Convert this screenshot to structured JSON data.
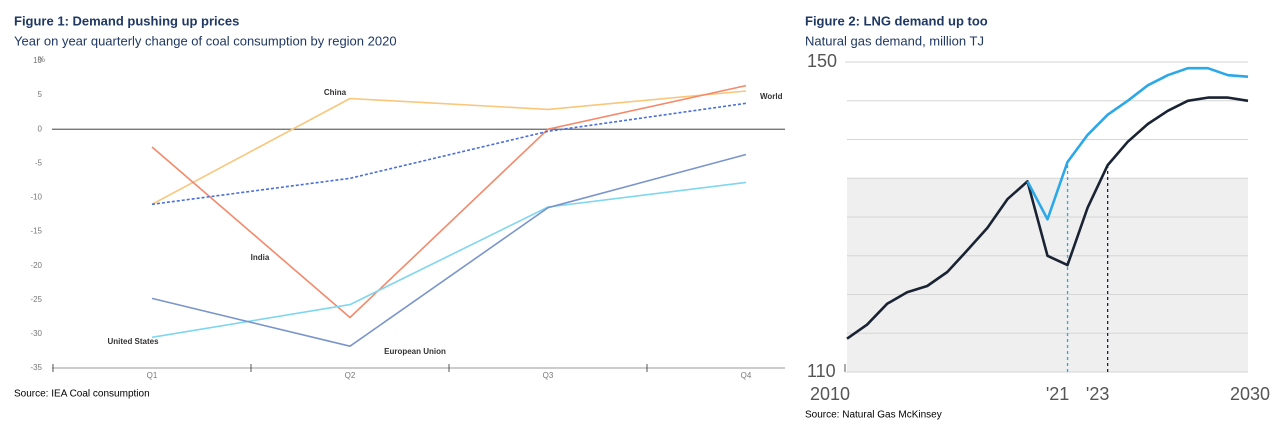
{
  "chart_data": [
    {
      "type": "line",
      "title": "Figure 1: Demand pushing up prices",
      "subtitle": "Year on year quarterly change of coal consumption by region 2020",
      "y_label": "%",
      "source": "Source: IEA Coal consumption",
      "categories": [
        "Q1",
        "Q2",
        "Q3",
        "Q4"
      ],
      "ylim": [
        -35,
        10
      ],
      "yticks": [
        10,
        5,
        0,
        -5,
        -10,
        -15,
        -20,
        -25,
        -30,
        -35
      ],
      "zero_line": true,
      "series": [
        {
          "name": "China",
          "color": "#f9c67a",
          "values": [
            -11,
            4.5,
            2.9,
            5.6
          ]
        },
        {
          "name": "India",
          "color": "#f4896b",
          "values": [
            -2.6,
            -27.6,
            0,
            6.4
          ]
        },
        {
          "name": "World",
          "color": "#4a6fdc",
          "dashed": true,
          "values": [
            -11,
            -7.2,
            -0.3,
            3.8
          ]
        },
        {
          "name": "United States",
          "color": "#7fd6f0",
          "values": [
            -30.5,
            -25.7,
            -11.4,
            -7.8
          ]
        },
        {
          "name": "European Union",
          "color": "#7a95cc",
          "values": [
            -24.8,
            -31.8,
            -11.5,
            -3.7
          ]
        }
      ]
    },
    {
      "type": "line",
      "title": "Figure 2: LNG demand up too",
      "subtitle": "Natural gas demand, million TJ",
      "source": "Source: Natural Gas McKinsey",
      "x": [
        2010,
        2011,
        2012,
        2013,
        2014,
        2015,
        2016,
        2017,
        2018,
        2019,
        2020,
        2021,
        2022,
        2023,
        2024,
        2025,
        2026,
        2027,
        2028,
        2029,
        2030
      ],
      "xlim": [
        2010,
        2030
      ],
      "xticks": [
        2010,
        {
          "value": 2021,
          "label": "'21"
        },
        {
          "value": 2023,
          "label": "'23"
        },
        2030
      ],
      "ylim": [
        110,
        150
      ],
      "yticks": [
        150,
        110
      ],
      "grid_lines": [
        115,
        120,
        125,
        130,
        135,
        140,
        145
      ],
      "shaded_below": 135,
      "markers": [
        {
          "x": 2021,
          "color": "#2aa8e8"
        },
        {
          "x": 2023,
          "color": "#1a2333"
        }
      ],
      "series": [
        {
          "color": "#1a2333",
          "values": [
            114.3,
            116.1,
            118.8,
            120.3,
            121.1,
            122.9,
            125.7,
            128.6,
            132.3,
            134.6,
            125.0,
            123.8,
            131.2,
            136.7,
            139.7,
            142.0,
            143.7,
            145.0,
            145.4,
            145.4,
            145.0
          ]
        },
        {
          "color": "#2aa8e8",
          "values": [
            null,
            null,
            null,
            null,
            null,
            null,
            null,
            null,
            null,
            134.6,
            129.7,
            137.1,
            140.6,
            143.2,
            145.0,
            147.0,
            148.3,
            149.2,
            149.2,
            148.3,
            148.1
          ]
        }
      ]
    }
  ]
}
